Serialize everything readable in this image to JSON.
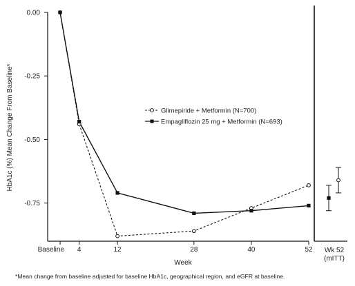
{
  "chart_data": {
    "type": "line",
    "ylabel": "HbA1c (%) Mean Change From Baseline*",
    "xlabel": "Week",
    "ylim": [
      -0.9,
      0.0
    ],
    "y_ticks": [
      "0.00",
      "-0.25",
      "-0.50",
      "-0.75"
    ],
    "y_tick_values": [
      0.0,
      -0.25,
      -0.5,
      -0.75
    ],
    "x_ticks": [
      "Baseline",
      "4",
      "12",
      "28",
      "40",
      "52"
    ],
    "x_tick_values": [
      0,
      4,
      12,
      28,
      40,
      52
    ],
    "xlim": [
      0,
      52
    ],
    "legend_position": "center-right",
    "series": [
      {
        "name": "Glimepiride + Metformin (N=700)",
        "style": "dashed",
        "marker": "open-circle",
        "color": "#111111",
        "x": [
          0,
          4,
          12,
          28,
          40,
          52
        ],
        "y": [
          0.0,
          -0.44,
          -0.88,
          -0.86,
          -0.77,
          -0.68
        ]
      },
      {
        "name": "Empagliflozin 25 mg + Metformin (N=693)",
        "style": "solid",
        "marker": "filled-square",
        "color": "#111111",
        "x": [
          0,
          4,
          12,
          28,
          40,
          52
        ],
        "y": [
          0.0,
          -0.43,
          -0.71,
          -0.79,
          -0.78,
          -0.76
        ]
      }
    ],
    "side_panel": {
      "tick_labels": [
        "Wk 52",
        "(mITT)"
      ],
      "points": [
        {
          "series": "Glimepiride + Metformin (N=700)",
          "mean": -0.66,
          "lower": -0.71,
          "upper": -0.61
        },
        {
          "series": "Empagliflozin 25 mg + Metformin (N=693)",
          "mean": -0.73,
          "lower": -0.78,
          "upper": -0.68
        }
      ]
    },
    "footnote": "*Mean change from baseline adjusted for baseline HbA1c, geographical region, and eGFR at baseline."
  }
}
